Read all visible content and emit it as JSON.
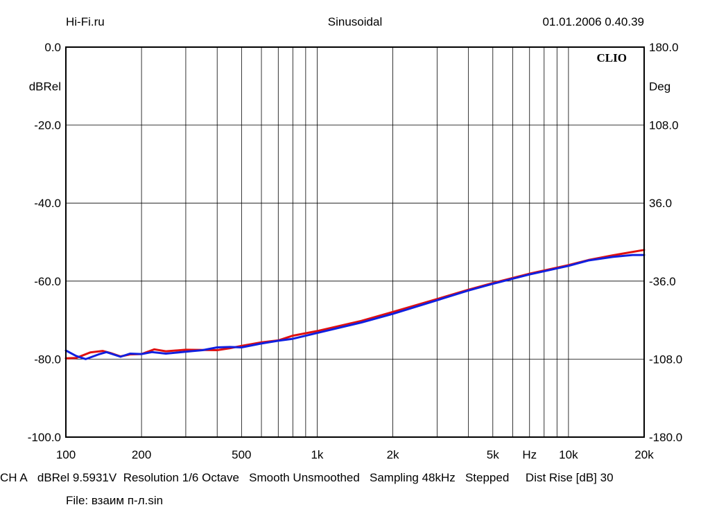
{
  "header": {
    "left": "Hi-Fi.ru",
    "center": "Sinusoidal",
    "right": "01.01.2006 0.40.39"
  },
  "logo": "CLIO",
  "footer": {
    "channel": "CH A",
    "level": "dBRel 9.5931V",
    "resolution": "Resolution 1/6 Octave",
    "smooth": "Smooth Unsmoothed",
    "sampling": "Sampling 48kHz",
    "mode": "Stepped",
    "dist": "Dist Rise [dB] 30"
  },
  "file": "File: взаим п-л.sin",
  "chart_data": {
    "type": "line",
    "title": "Sinusoidal",
    "x_scale": "log",
    "xlim": [
      100,
      20000
    ],
    "xunit": "Hz",
    "x_ticks": [
      {
        "value": 100,
        "label": "100"
      },
      {
        "value": 200,
        "label": "200"
      },
      {
        "value": 500,
        "label": "500"
      },
      {
        "value": 1000,
        "label": "1k"
      },
      {
        "value": 2000,
        "label": "2k"
      },
      {
        "value": 5000,
        "label": "5k"
      },
      {
        "value": 10000,
        "label": "10k"
      },
      {
        "value": 20000,
        "label": "20k"
      }
    ],
    "ylabel": "dBRel",
    "ylim": [
      -100,
      0
    ],
    "y_ticks": [
      {
        "value": 0,
        "label": "0.0"
      },
      {
        "value": -20,
        "label": "-20.0"
      },
      {
        "value": -40,
        "label": "-40.0"
      },
      {
        "value": -60,
        "label": "-60.0"
      },
      {
        "value": -80,
        "label": "-80.0"
      },
      {
        "value": -100,
        "label": "-100.0"
      }
    ],
    "y2label": "Deg",
    "y2lim": [
      -180,
      180
    ],
    "y2_ticks": [
      {
        "value": 180,
        "label": "180.0"
      },
      {
        "value": 108,
        "label": "108.0"
      },
      {
        "value": 36,
        "label": "36.0"
      },
      {
        "value": -36,
        "label": "-36.0"
      },
      {
        "value": -108,
        "label": "-108.0"
      },
      {
        "value": -180,
        "label": "-180.0"
      }
    ],
    "grid": true,
    "series": [
      {
        "name": "red",
        "color": "#e01010",
        "points": [
          [
            100,
            -79.8
          ],
          [
            110,
            -79.7
          ],
          [
            125,
            -78.3
          ],
          [
            140,
            -77.9
          ],
          [
            150,
            -78.4
          ],
          [
            165,
            -79.3
          ],
          [
            180,
            -78.8
          ],
          [
            200,
            -78.7
          ],
          [
            225,
            -77.5
          ],
          [
            250,
            -78.0
          ],
          [
            300,
            -77.6
          ],
          [
            400,
            -77.7
          ],
          [
            450,
            -77.2
          ],
          [
            500,
            -76.6
          ],
          [
            600,
            -75.7
          ],
          [
            700,
            -75.2
          ],
          [
            800,
            -74.0
          ],
          [
            1000,
            -72.8
          ],
          [
            1500,
            -70.2
          ],
          [
            2000,
            -67.9
          ],
          [
            3000,
            -64.6
          ],
          [
            4000,
            -62.2
          ],
          [
            5000,
            -60.5
          ],
          [
            7000,
            -58.1
          ],
          [
            10000,
            -55.9
          ],
          [
            12000,
            -54.6
          ],
          [
            15000,
            -53.4
          ],
          [
            20000,
            -52.0
          ]
        ]
      },
      {
        "name": "blue",
        "color": "#1020e0",
        "points": [
          [
            100,
            -77.8
          ],
          [
            110,
            -79.2
          ],
          [
            120,
            -80.0
          ],
          [
            135,
            -78.8
          ],
          [
            145,
            -78.2
          ],
          [
            165,
            -79.4
          ],
          [
            180,
            -78.6
          ],
          [
            200,
            -78.7
          ],
          [
            220,
            -78.2
          ],
          [
            250,
            -78.6
          ],
          [
            300,
            -78.1
          ],
          [
            350,
            -77.7
          ],
          [
            400,
            -77.0
          ],
          [
            450,
            -76.9
          ],
          [
            500,
            -77.0
          ],
          [
            600,
            -76.0
          ],
          [
            700,
            -75.3
          ],
          [
            800,
            -74.8
          ],
          [
            1000,
            -73.3
          ],
          [
            1500,
            -70.6
          ],
          [
            2000,
            -68.4
          ],
          [
            3000,
            -64.9
          ],
          [
            4000,
            -62.4
          ],
          [
            5000,
            -60.7
          ],
          [
            7000,
            -58.3
          ],
          [
            10000,
            -56.1
          ],
          [
            12000,
            -54.7
          ],
          [
            15000,
            -53.8
          ],
          [
            18000,
            -53.3
          ],
          [
            20000,
            -53.3
          ]
        ]
      }
    ]
  }
}
